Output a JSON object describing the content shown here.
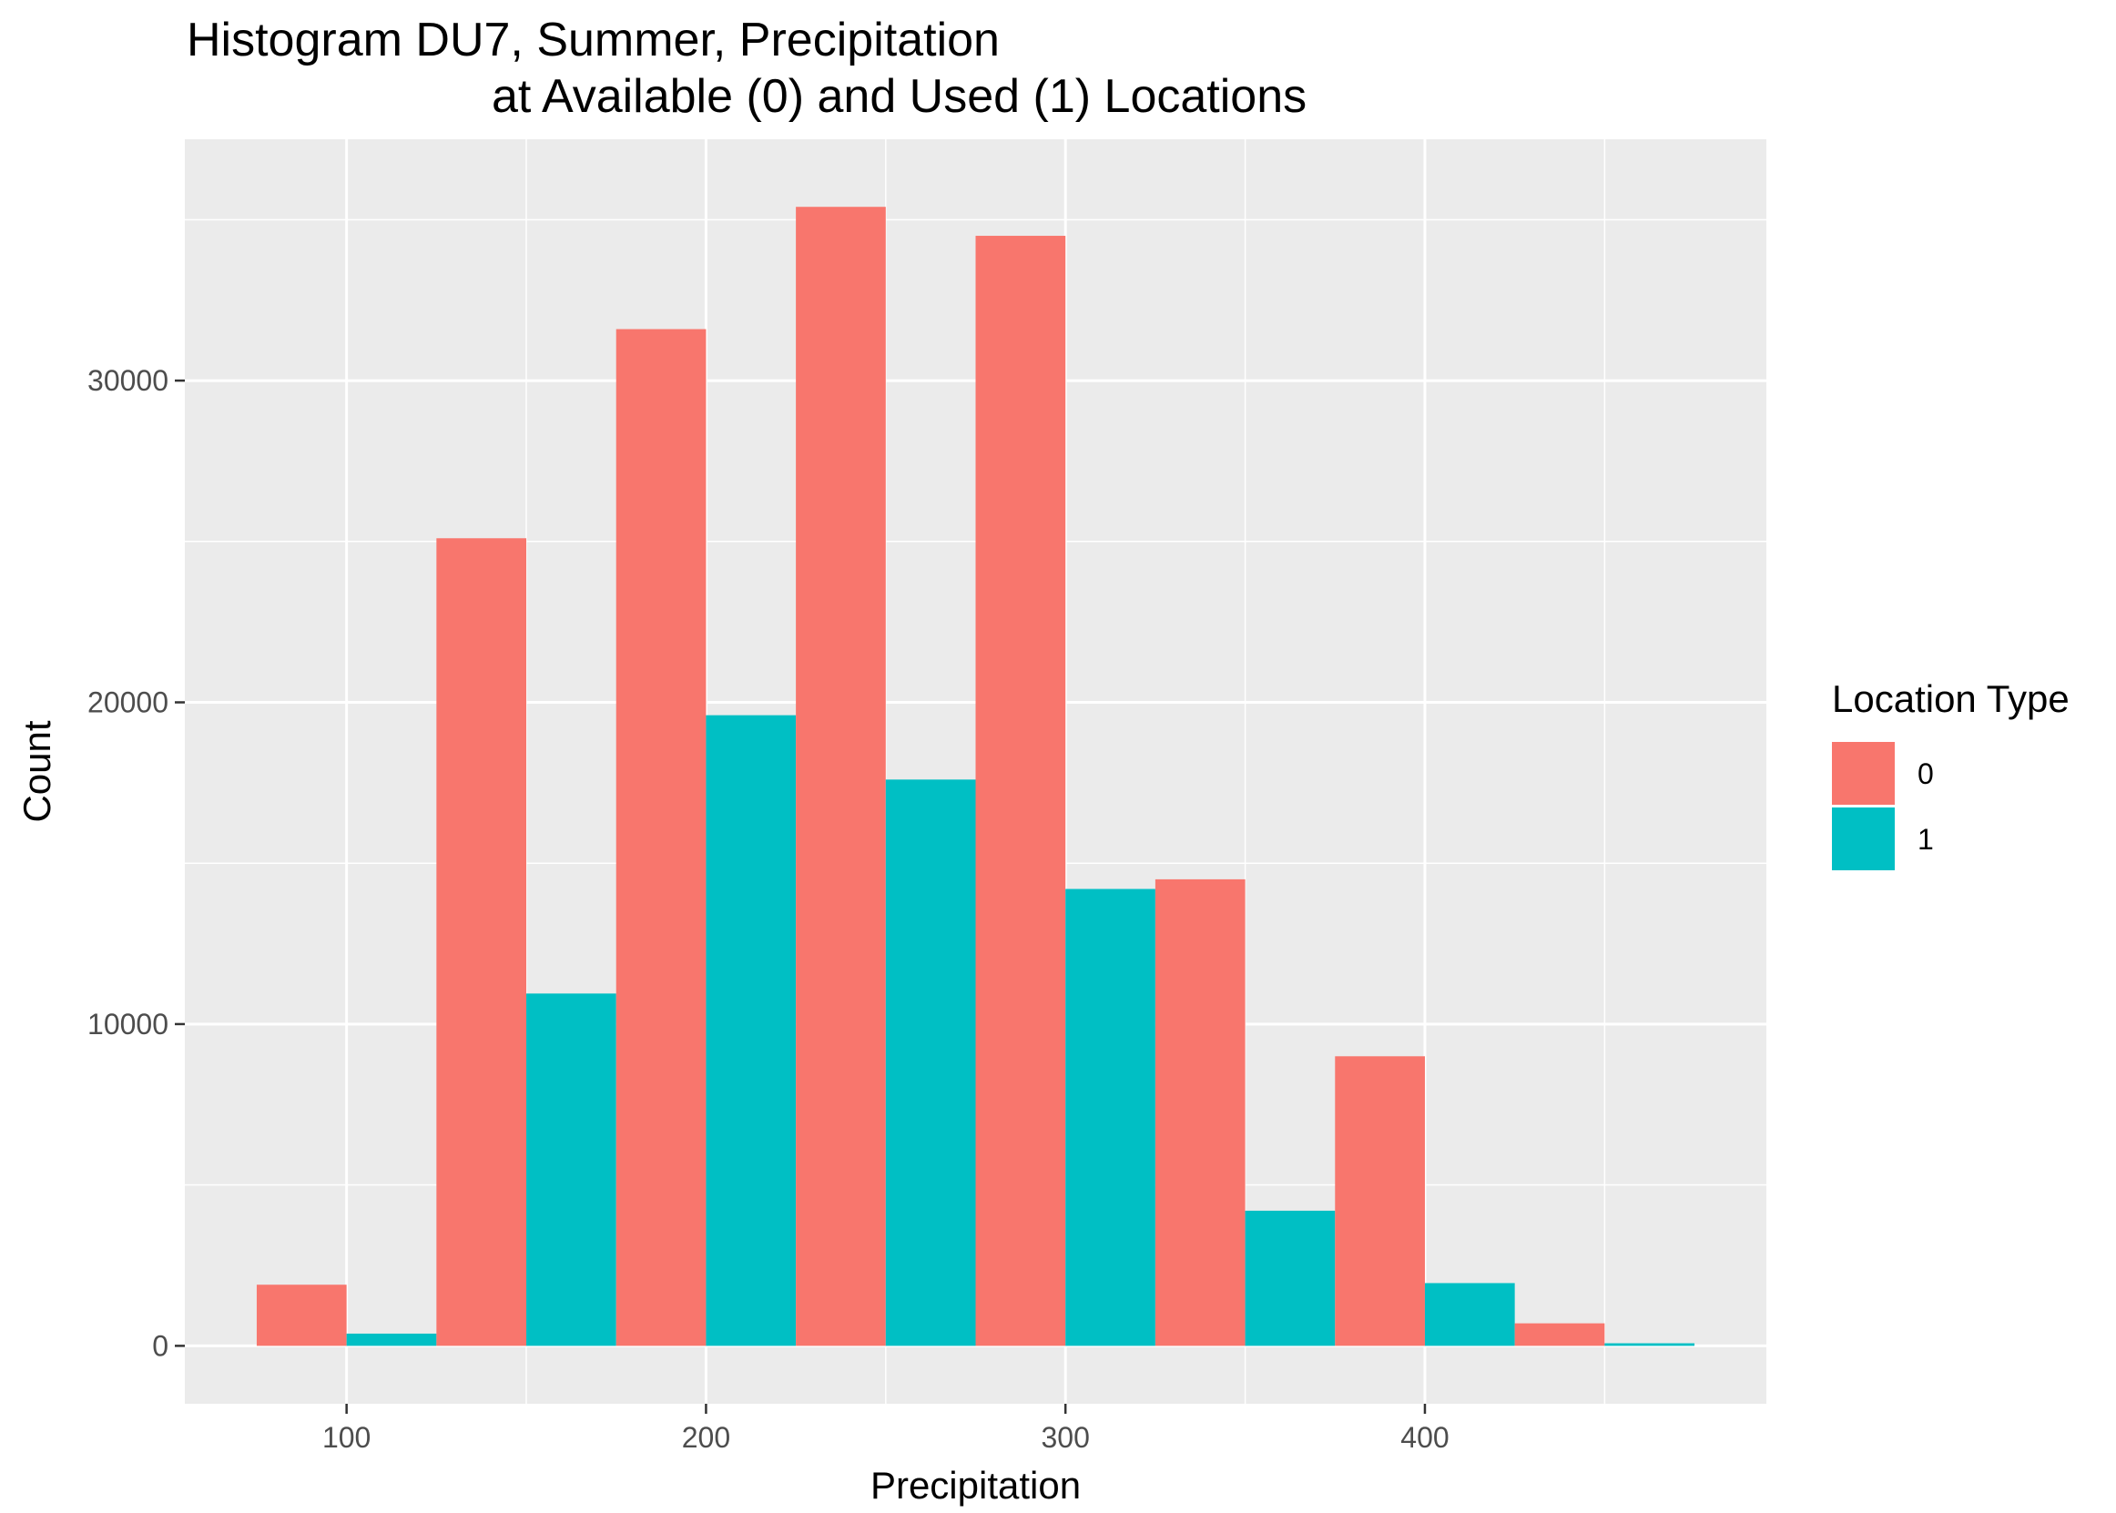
{
  "chart_data": {
    "type": "bar",
    "title_lines": [
      "Histogram DU7, Summer, Precipitation",
      "at Available (0) and Used (1) Locations"
    ],
    "xlabel": "Precipitation",
    "ylabel": "Count",
    "xlim": [
      55,
      495
    ],
    "ylim": [
      -1800,
      37500
    ],
    "x_ticks": [
      100,
      200,
      300,
      400
    ],
    "x_minor_ticks": [
      150,
      250,
      350,
      450
    ],
    "y_ticks": [
      0,
      10000,
      20000,
      30000
    ],
    "y_minor_ticks": [
      5000,
      15000,
      25000,
      35000
    ],
    "bin_width": 50,
    "bin_centers": [
      100,
      150,
      200,
      250,
      300,
      350,
      400,
      450
    ],
    "legend_title": "Location Type",
    "legend_position": "right",
    "grid": true,
    "series": [
      {
        "name": "0",
        "color": "#F8766D",
        "values": [
          1900,
          25100,
          31600,
          35400,
          34500,
          14500,
          9000,
          700
        ]
      },
      {
        "name": "1",
        "color": "#00BFC4",
        "values": [
          380,
          10950,
          19600,
          17600,
          14200,
          4200,
          1950,
          80
        ]
      }
    ],
    "panel_background": "#EBEBEB",
    "grid_color": "#FFFFFF"
  }
}
